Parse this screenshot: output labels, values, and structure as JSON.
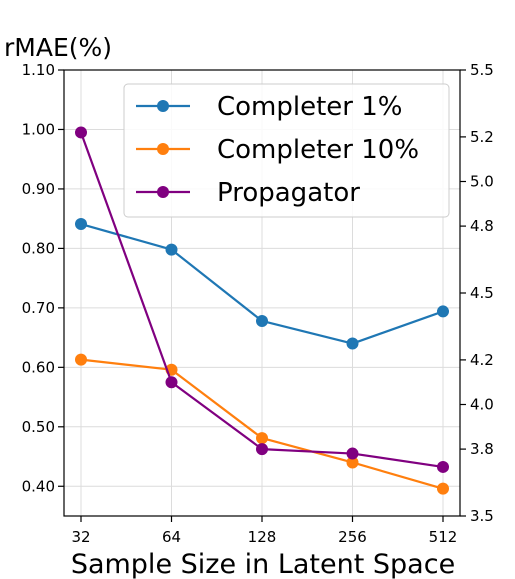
{
  "chart_data": {
    "type": "line",
    "title": "",
    "xlabel": "Sample Size in Latent Space",
    "ylabel": "rMAE(%)",
    "x_scale": "log2",
    "x": [
      32,
      64,
      128,
      256,
      512
    ],
    "x_tick_labels": [
      "32",
      "64",
      "128",
      "256",
      "512"
    ],
    "ylim": [
      0.35,
      1.1
    ],
    "y_ticks": [
      0.4,
      0.5,
      0.6,
      0.7,
      0.8,
      0.9,
      1.0,
      1.1
    ],
    "y_tick_labels": [
      "0.40",
      "0.50",
      "0.60",
      "0.70",
      "0.80",
      "0.90",
      "1.00",
      "1.10"
    ],
    "y2lim": [
      3.5,
      5.5
    ],
    "y2_ticks": [
      3.5,
      3.8,
      4.0,
      4.2,
      4.5,
      4.8,
      5.0,
      5.2,
      5.5
    ],
    "y2_tick_labels": [
      "3.5",
      "3.8",
      "4.0",
      "4.2",
      "4.5",
      "4.8",
      "5.0",
      "5.2",
      "5.5"
    ],
    "grid": true,
    "legend_position": "top-right",
    "series": [
      {
        "name": "Completer 1%",
        "axis": "left",
        "color": "#1f77b4",
        "values": [
          0.841,
          0.798,
          0.678,
          0.64,
          0.694
        ]
      },
      {
        "name": "Completer 10%",
        "axis": "left",
        "color": "#ff7f0e",
        "values": [
          0.613,
          0.596,
          0.481,
          0.44,
          0.396
        ]
      },
      {
        "name": "Propagator",
        "axis": "right",
        "color": "#800080",
        "values": [
          5.22,
          4.1,
          3.8,
          3.78,
          3.72
        ]
      }
    ]
  }
}
